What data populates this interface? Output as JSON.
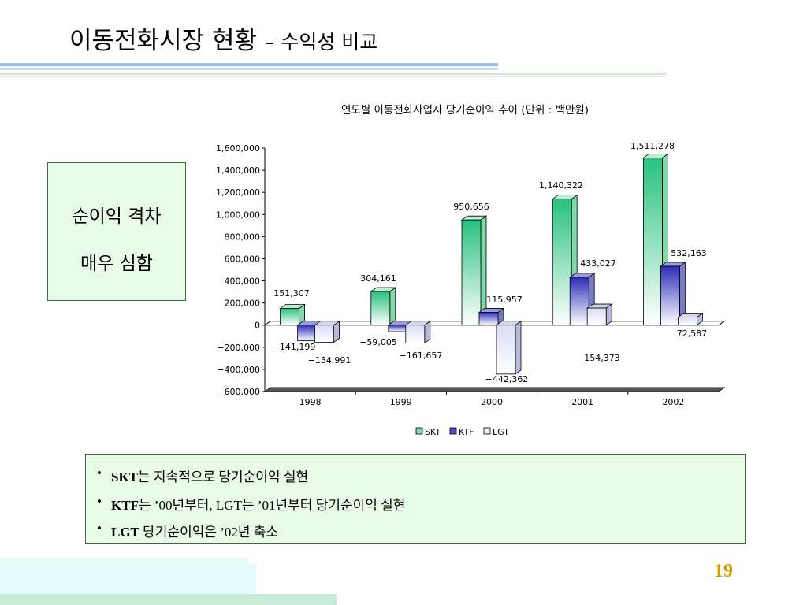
{
  "slide": {
    "title_main": "이동전화시장 현황",
    "title_sub": "– 수익성 비교",
    "callout_line1": "순이익 격차",
    "callout_line2": "매우 심함",
    "bullets": [
      {
        "bold": "SKT",
        "rest": "는 지속적으로 당기순이익 실현"
      },
      {
        "bold": "KTF",
        "rest": "는 ’00년부터, LGT는 ’01년부터 당기순이익 실현"
      },
      {
        "bold": "LGT",
        "rest": " 당기순이익은 ’02년 축소"
      }
    ],
    "page_number": "19"
  },
  "chart_data": {
    "type": "bar",
    "title": "연도별 이동전화사업자 당기순이익 추이 (단위 : 백만원)",
    "categories": [
      "1998",
      "1999",
      "2000",
      "2001",
      "2002"
    ],
    "series": [
      {
        "name": "SKT",
        "values": [
          151307,
          304161,
          950656,
          1140322,
          1511278
        ],
        "labels": [
          "151,307",
          "304,161",
          "950,656",
          "1,140,322",
          "1,511,278"
        ]
      },
      {
        "name": "KTF",
        "values": [
          -141199,
          -59005,
          115957,
          433027,
          532163
        ],
        "labels": [
          "−141,199",
          "−59,005",
          "115,957",
          "433,027",
          "532,163"
        ]
      },
      {
        "name": "LGT",
        "values": [
          -154991,
          -161657,
          -442362,
          154373,
          72587
        ],
        "labels": [
          "−154,991",
          "−161,657",
          "−442,362",
          "154,373",
          "72,587"
        ]
      }
    ],
    "ylim": [
      -600000,
      1600000
    ],
    "yticks": [
      -600000,
      -400000,
      -200000,
      0,
      200000,
      400000,
      600000,
      800000,
      1000000,
      1200000,
      1400000,
      1600000
    ],
    "ytick_labels": [
      "−600,000",
      "−400,000",
      "−200,000",
      "0",
      "200,000",
      "400,000",
      "600,000",
      "800,000",
      "1,000,000",
      "1,200,000",
      "1,400,000",
      "1,600,000"
    ],
    "legend": "bottom",
    "colors": {
      "SKT": "#27c17d",
      "KTF": "#2c2cb8",
      "LGT": "#eeeeff"
    }
  }
}
